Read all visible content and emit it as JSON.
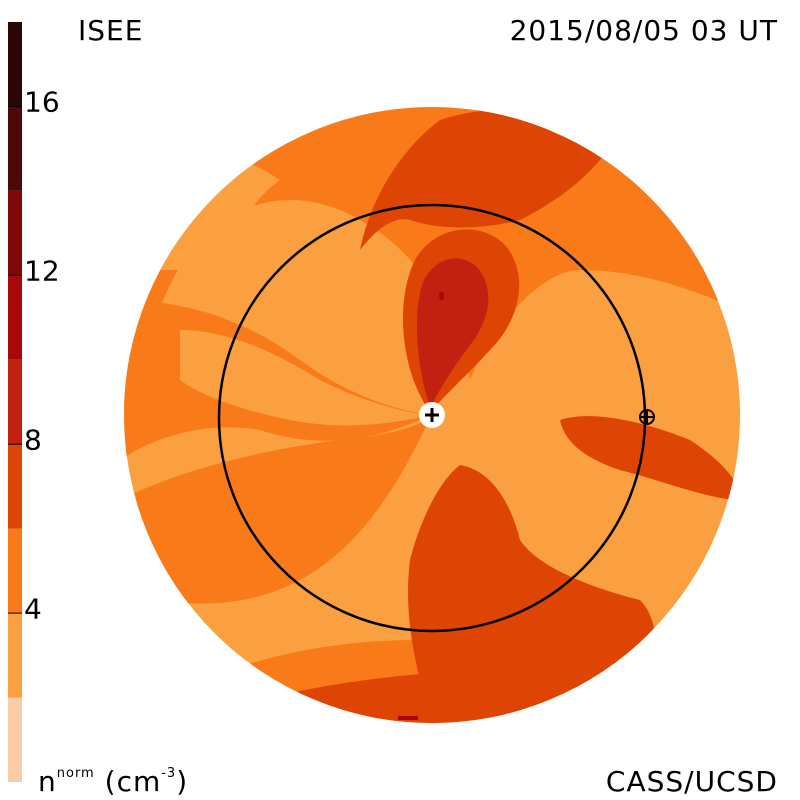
{
  "header": {
    "title_left": "ISEE",
    "title_right": "2015/08/05 03 UT"
  },
  "footer": {
    "credit": "CASS/UCSD",
    "units_base": "n",
    "units_sup": "norm",
    "units_tail": "(cm",
    "units_exp": "-3",
    "units_close": ")"
  },
  "colors": {
    "level_0_2": "#fbcca8",
    "level_2_4": "#fba040",
    "level_4_6": "#f87a18",
    "level_6_8": "#de4404",
    "level_8_10": "#c22010",
    "level_10_12": "#a80808",
    "level_12_14": "#7e0808",
    "level_14_16": "#4e0808",
    "level_16_18": "#2a0606",
    "earth_orbit": "#000000",
    "sun_marker": "#ffffff"
  },
  "chart_data": {
    "type": "heatmap",
    "title": "ISEE",
    "subtitle": "2015/08/05 03 UT",
    "colorbar": {
      "label": "n^norm (cm^-3)",
      "range": [
        0,
        18
      ],
      "ticks": [
        "4",
        "8",
        "12",
        "16"
      ],
      "tick_values": [
        4,
        8,
        12,
        16
      ],
      "levels": [
        0,
        2,
        4,
        6,
        8,
        10,
        12,
        14,
        16,
        18
      ]
    },
    "features": [
      "Sun at center",
      "Earth orbit circle",
      "Earth marker on orbit"
    ]
  }
}
